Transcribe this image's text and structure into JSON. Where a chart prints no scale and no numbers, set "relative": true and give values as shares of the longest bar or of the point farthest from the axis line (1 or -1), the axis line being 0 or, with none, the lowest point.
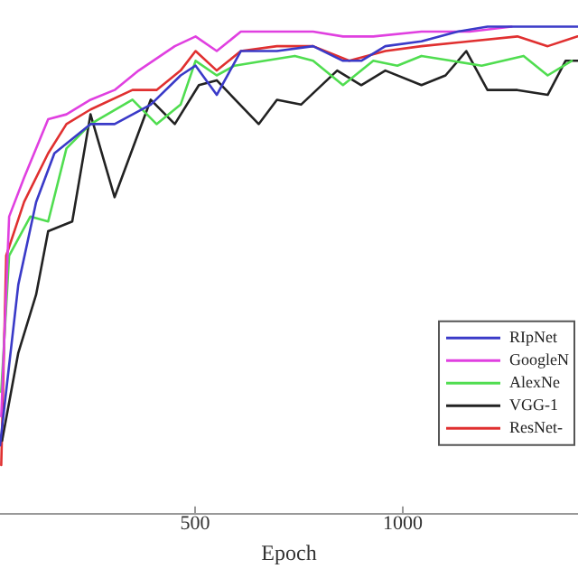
{
  "chart_data": {
    "type": "line",
    "xlabel": "Epoch",
    "relative": true,
    "xlim": [
      30,
      1422
    ],
    "xticks": [
      500,
      1000
    ],
    "grid": false,
    "legend": "right",
    "marker": "none",
    "line_style": "solid",
    "series": [
      {
        "name": "RIpNet",
        "color": "#3a3ac8",
        "x": [
          30,
          74,
          117,
          161,
          248,
          306,
          393,
          465,
          501,
          552,
          610,
          697,
          784,
          856,
          900,
          958,
          1045,
          1132,
          1204,
          1291,
          1421
        ],
        "values": [
          0.14,
          0.47,
          0.64,
          0.74,
          0.8,
          0.8,
          0.84,
          0.9,
          0.92,
          0.86,
          0.95,
          0.95,
          0.96,
          0.93,
          0.93,
          0.96,
          0.97,
          0.99,
          1.0,
          1.0,
          1.0
        ]
      },
      {
        "name": "GoogleN",
        "color": "#e040e0",
        "x": [
          33,
          52,
          88,
          146,
          190,
          248,
          306,
          364,
          451,
          501,
          552,
          610,
          697,
          784,
          856,
          929,
          1045,
          1161,
          1262
        ],
        "values": [
          0.2,
          0.61,
          0.69,
          0.81,
          0.82,
          0.85,
          0.87,
          0.91,
          0.96,
          0.98,
          0.95,
          0.99,
          0.99,
          0.99,
          0.98,
          0.98,
          0.99,
          0.99,
          1.0
        ]
      },
      {
        "name": "AlexNe",
        "color": "#50dd50",
        "x": [
          33,
          52,
          103,
          146,
          190,
          248,
          349,
          407,
          465,
          501,
          552,
          595,
          668,
          740,
          784,
          856,
          929,
          987,
          1045,
          1117,
          1190,
          1291,
          1349,
          1407
        ],
        "values": [
          0.25,
          0.53,
          0.61,
          0.6,
          0.75,
          0.8,
          0.85,
          0.8,
          0.84,
          0.93,
          0.9,
          0.92,
          0.93,
          0.94,
          0.93,
          0.88,
          0.93,
          0.92,
          0.94,
          0.93,
          0.92,
          0.94,
          0.9,
          0.93
        ]
      },
      {
        "name": "VGG-1",
        "color": "#222222",
        "x": [
          35,
          74,
          117,
          146,
          204,
          248,
          306,
          393,
          451,
          509,
          552,
          653,
          697,
          755,
          842,
          900,
          958,
          1045,
          1103,
          1153,
          1204,
          1276,
          1349,
          1392,
          1421
        ],
        "values": [
          0.15,
          0.33,
          0.45,
          0.58,
          0.6,
          0.82,
          0.65,
          0.85,
          0.8,
          0.88,
          0.89,
          0.8,
          0.85,
          0.84,
          0.91,
          0.88,
          0.91,
          0.88,
          0.9,
          0.95,
          0.87,
          0.87,
          0.86,
          0.93,
          0.93
        ]
      },
      {
        "name": "ResNet-",
        "color": "#e03030",
        "x": [
          33,
          45,
          88,
          146,
          190,
          248,
          349,
          407,
          465,
          501,
          552,
          610,
          697,
          784,
          871,
          958,
          1045,
          1161,
          1276,
          1349,
          1421
        ],
        "values": [
          0.1,
          0.53,
          0.64,
          0.74,
          0.8,
          0.83,
          0.87,
          0.87,
          0.91,
          0.95,
          0.91,
          0.95,
          0.96,
          0.96,
          0.93,
          0.95,
          0.96,
          0.97,
          0.98,
          0.96,
          0.98
        ]
      }
    ]
  }
}
